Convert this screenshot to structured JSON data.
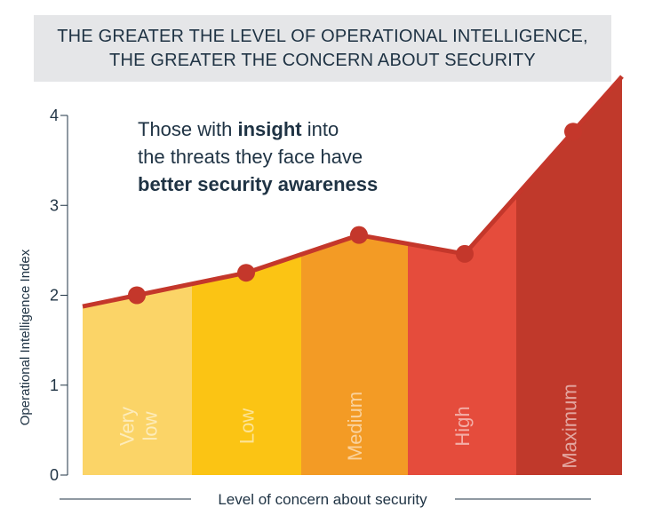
{
  "banner": {
    "line1": "THE GREATER THE LEVEL OF OPERATIONAL INTELLIGENCE,",
    "line2": "THE GREATER THE CONCERN ABOUT SECURITY"
  },
  "annotation": {
    "part1": "Those with ",
    "bold1": "insight",
    "part2": " into",
    "line2": "the threats they face have",
    "bold_line3": "better security awareness"
  },
  "colors": {
    "line": "#c4372b",
    "text": "#1f3344",
    "bands": [
      "#fbd467",
      "#fbc414",
      "#f39b25",
      "#e54c3c",
      "#c0392b"
    ]
  },
  "chart_data": {
    "type": "area",
    "title": "THE GREATER THE LEVEL OF OPERATIONAL INTELLIGENCE, THE GREATER THE CONCERN ABOUT SECURITY",
    "xlabel": "Level of concern about security",
    "ylabel": "Operational Intelligence Index",
    "categories": [
      "Very low",
      "Low",
      "Medium",
      "High",
      "Maximum"
    ],
    "category_lines": [
      [
        "Very",
        "low"
      ],
      [
        "Low"
      ],
      [
        "Medium"
      ],
      [
        "High"
      ],
      [
        "Maximum"
      ]
    ],
    "values": [
      2.0,
      2.25,
      2.67,
      2.46,
      3.82
    ],
    "ylim": [
      0,
      4
    ],
    "yticks": [
      "0",
      "1",
      "2",
      "3",
      "4"
    ],
    "grid": false
  }
}
